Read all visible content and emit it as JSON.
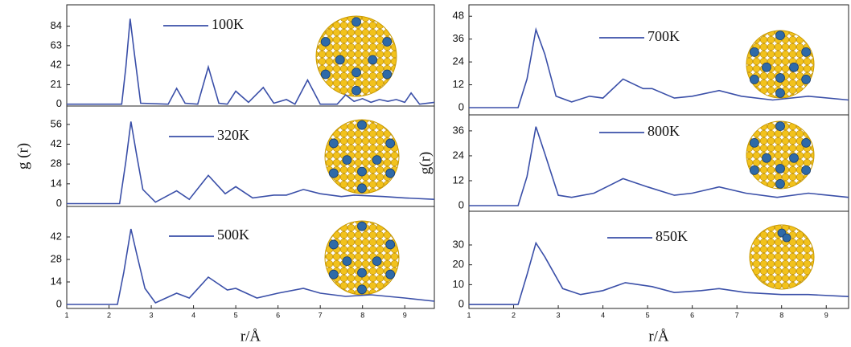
{
  "chart_data": [
    {
      "type": "line",
      "xlim": [
        1,
        9.7
      ],
      "ylim": [
        -2,
        107
      ],
      "yticks": [
        0,
        21,
        42,
        63,
        84
      ],
      "x": [
        1,
        2.3,
        2.4,
        2.5,
        2.6,
        2.75,
        3.4,
        3.6,
        3.8,
        4.1,
        4.35,
        4.6,
        4.8,
        5.0,
        5.3,
        5.65,
        5.9,
        6.2,
        6.4,
        6.7,
        7.0,
        7.4,
        7.6,
        7.8,
        8.0,
        8.2,
        8.4,
        8.6,
        8.8,
        9.0,
        9.15,
        9.35,
        9.7
      ],
      "series": [
        {
          "name": "100K",
          "color": "#3a4fa8",
          "values": [
            0,
            0,
            40,
            92,
            55,
            1,
            0,
            17,
            1,
            0,
            40,
            1,
            0,
            14,
            2,
            18,
            1,
            5,
            0,
            26,
            0,
            0,
            10,
            3,
            6,
            2,
            5,
            3,
            5,
            2,
            12,
            0,
            2
          ]
        }
      ]
    },
    {
      "type": "line",
      "xlim": [
        1,
        9.7
      ],
      "ylim": [
        -2,
        69
      ],
      "yticks": [
        0,
        14,
        28,
        42,
        56
      ],
      "ylabel": "g (r)",
      "x": [
        1,
        2.25,
        2.4,
        2.52,
        2.65,
        2.8,
        3.1,
        3.6,
        3.9,
        4.35,
        4.75,
        5.0,
        5.4,
        5.9,
        6.2,
        6.6,
        7.0,
        7.5,
        7.8,
        8.5,
        9.0,
        9.7
      ],
      "series": [
        {
          "name": "320K",
          "color": "#3a4fa8",
          "values": [
            0,
            0,
            30,
            58,
            35,
            10,
            1,
            9,
            3,
            20,
            7,
            12,
            4,
            6,
            6,
            10,
            7,
            5,
            6,
            5,
            4,
            3
          ]
        }
      ]
    },
    {
      "type": "line",
      "xlim": [
        1,
        9.7
      ],
      "ylim": [
        -2.5,
        61
      ],
      "yticks": [
        0,
        14,
        28,
        42
      ],
      "xticks": [
        1,
        2,
        3,
        4,
        5,
        6,
        7,
        8,
        9
      ],
      "xlabel": "r/Å",
      "x": [
        1,
        2.2,
        2.35,
        2.52,
        2.65,
        2.85,
        3.1,
        3.6,
        3.9,
        4.35,
        4.8,
        5.0,
        5.5,
        6.0,
        6.6,
        7.0,
        7.6,
        8.2,
        9.0,
        9.7
      ],
      "series": [
        {
          "name": "500K",
          "color": "#3a4fa8",
          "values": [
            0,
            0,
            20,
            47,
            32,
            10,
            1,
            7,
            4,
            17,
            9,
            10,
            4,
            7,
            10,
            7,
            5,
            6,
            4,
            2
          ]
        }
      ]
    },
    {
      "type": "line",
      "xlim": [
        1,
        9.5
      ],
      "ylim": [
        -3.8,
        54
      ],
      "yticks": [
        0,
        12,
        24,
        36,
        48
      ],
      "x": [
        1,
        2.1,
        2.3,
        2.5,
        2.7,
        2.95,
        3.3,
        3.7,
        4.0,
        4.45,
        4.9,
        5.1,
        5.6,
        6.0,
        6.6,
        7.1,
        7.8,
        8.6,
        9.5
      ],
      "series": [
        {
          "name": "700K",
          "color": "#3a4fa8",
          "values": [
            0,
            0,
            15,
            41,
            28,
            6,
            3,
            6,
            5,
            15,
            10,
            10,
            5,
            6,
            9,
            6,
            4,
            6,
            4
          ]
        }
      ]
    },
    {
      "type": "line",
      "xlim": [
        1,
        9.5
      ],
      "ylim": [
        -2.7,
        43.7
      ],
      "yticks": [
        0,
        12,
        24,
        36
      ],
      "ylabel": "g(r)",
      "x": [
        1,
        2.1,
        2.3,
        2.5,
        2.7,
        3.0,
        3.3,
        3.8,
        4.45,
        5.0,
        5.6,
        6.0,
        6.6,
        7.2,
        7.9,
        8.6,
        9.5
      ],
      "series": [
        {
          "name": "800K",
          "color": "#3a4fa8",
          "values": [
            0,
            0,
            14,
            38,
            25,
            5,
            4,
            6,
            13,
            9,
            5,
            6,
            9,
            6,
            4,
            6,
            4
          ]
        }
      ]
    },
    {
      "type": "line",
      "xlim": [
        1,
        9.5
      ],
      "ylim": [
        -2,
        47
      ],
      "yticks": [
        0,
        10,
        20,
        30
      ],
      "xticks": [
        1,
        2,
        3,
        4,
        5,
        6,
        7,
        8,
        9
      ],
      "xlabel": "r/Å",
      "x": [
        1,
        2.1,
        2.3,
        2.5,
        2.7,
        3.1,
        3.5,
        4.0,
        4.5,
        5.1,
        5.6,
        6.2,
        6.6,
        7.2,
        8.0,
        8.6,
        9.5
      ],
      "series": [
        {
          "name": "850K",
          "color": "#3a4fa8",
          "values": [
            0,
            0,
            15,
            31,
            24,
            8,
            5,
            7,
            11,
            9,
            6,
            7,
            8,
            6,
            5,
            5,
            4
          ]
        }
      ]
    }
  ]
}
